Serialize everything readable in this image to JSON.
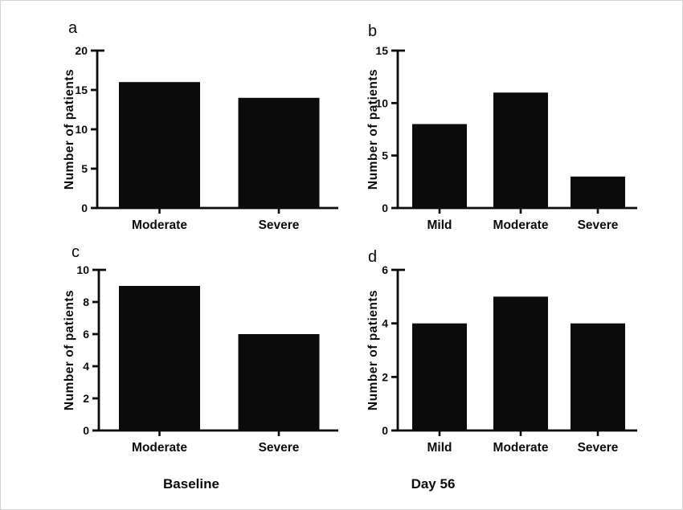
{
  "figure": {
    "column_labels": [
      {
        "id": "baseline",
        "text": "Baseline"
      },
      {
        "id": "day56",
        "text": "Day 56"
      }
    ]
  },
  "colors": {
    "background": "#ffffff",
    "border": "#d4d4d4",
    "bar": "#0b0b0b",
    "axis": "#0b0b0b",
    "text": "#0b0b0b"
  },
  "chart_data": [
    {
      "id": "a",
      "type": "bar",
      "panel_label": "a",
      "column": "Baseline",
      "title": "",
      "xlabel": "",
      "ylabel": "Number of patients",
      "categories": [
        "Moderate",
        "Severe"
      ],
      "values": [
        16,
        14
      ],
      "ylim": [
        0,
        20
      ],
      "yticks": [
        0,
        5,
        10,
        15,
        20
      ],
      "grid": false,
      "legend": false
    },
    {
      "id": "b",
      "type": "bar",
      "panel_label": "b",
      "column": "Day 56",
      "title": "",
      "xlabel": "",
      "ylabel": "Number of patients",
      "categories": [
        "Mild",
        "Moderate",
        "Severe"
      ],
      "values": [
        8,
        11,
        3
      ],
      "ylim": [
        0,
        15
      ],
      "yticks": [
        0,
        5,
        10,
        15
      ],
      "grid": false,
      "legend": false
    },
    {
      "id": "c",
      "type": "bar",
      "panel_label": "c",
      "column": "Baseline",
      "title": "",
      "xlabel": "",
      "ylabel": "Number of patients",
      "categories": [
        "Moderate",
        "Severe"
      ],
      "values": [
        9,
        6
      ],
      "ylim": [
        0,
        10
      ],
      "yticks": [
        0,
        2,
        4,
        6,
        8,
        10
      ],
      "grid": false,
      "legend": false
    },
    {
      "id": "d",
      "type": "bar",
      "panel_label": "d",
      "column": "Day 56",
      "title": "",
      "xlabel": "",
      "ylabel": "Number of patients",
      "categories": [
        "Mild",
        "Moderate",
        "Severe"
      ],
      "values": [
        4,
        5,
        4
      ],
      "ylim": [
        0,
        6
      ],
      "yticks": [
        0,
        2,
        4,
        6
      ],
      "grid": false,
      "legend": false
    }
  ]
}
